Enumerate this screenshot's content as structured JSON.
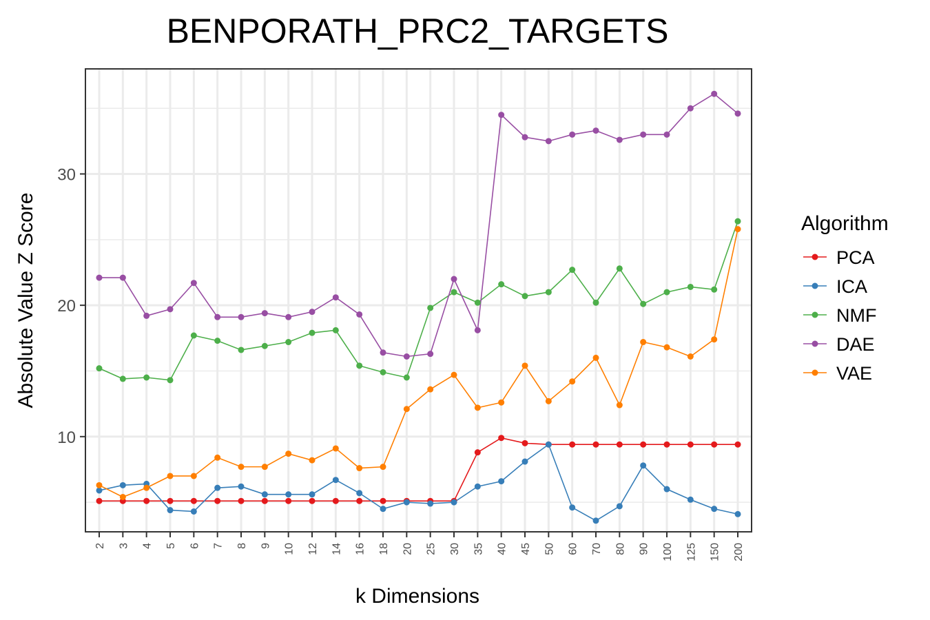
{
  "chart_data": {
    "type": "line",
    "title": "BENPORATH_PRC2_TARGETS",
    "xlabel": "k Dimensions",
    "ylabel": "Absolute Value Z Score",
    "x": [
      "2",
      "3",
      "4",
      "5",
      "6",
      "7",
      "8",
      "9",
      "10",
      "12",
      "14",
      "16",
      "18",
      "20",
      "25",
      "30",
      "35",
      "40",
      "45",
      "50",
      "60",
      "70",
      "80",
      "90",
      "100",
      "125",
      "150",
      "200"
    ],
    "ylim": [
      2.75,
      38.0
    ],
    "yticks": [
      10,
      20,
      30
    ],
    "grid": true,
    "legend": {
      "title": "Algorithm",
      "position": "right"
    },
    "series": [
      {
        "name": "PCA",
        "color": "#e41a1c",
        "values": [
          5.1,
          5.1,
          5.1,
          5.1,
          5.1,
          5.1,
          5.1,
          5.1,
          5.1,
          5.1,
          5.1,
          5.1,
          5.1,
          5.1,
          5.1,
          5.1,
          8.8,
          9.9,
          9.5,
          9.4,
          9.4,
          9.4,
          9.4,
          9.4,
          9.4,
          9.4,
          9.4,
          9.4
        ]
      },
      {
        "name": "ICA",
        "color": "#377eb8",
        "values": [
          5.9,
          6.3,
          6.4,
          4.4,
          4.3,
          6.1,
          6.2,
          5.6,
          5.6,
          5.6,
          6.7,
          5.7,
          4.5,
          5.0,
          4.9,
          5.0,
          6.2,
          6.6,
          8.1,
          9.4,
          4.6,
          3.6,
          4.7,
          7.8,
          6.0,
          5.2,
          4.5,
          4.1
        ]
      },
      {
        "name": "NMF",
        "color": "#4daf4a",
        "values": [
          15.2,
          14.4,
          14.5,
          14.3,
          17.7,
          17.3,
          16.6,
          16.9,
          17.2,
          17.9,
          18.1,
          15.4,
          14.9,
          14.5,
          19.8,
          21.0,
          20.2,
          21.6,
          20.7,
          21.0,
          22.7,
          20.2,
          22.8,
          20.1,
          21.0,
          21.4,
          21.2,
          26.4
        ]
      },
      {
        "name": "DAE",
        "color": "#984ea3",
        "values": [
          22.1,
          22.1,
          19.2,
          19.7,
          21.7,
          19.1,
          19.1,
          19.4,
          19.1,
          19.5,
          20.6,
          19.3,
          16.4,
          16.1,
          16.3,
          22.0,
          18.1,
          34.5,
          32.8,
          32.5,
          33.0,
          33.3,
          32.6,
          33.0,
          33.0,
          35.0,
          36.1,
          34.6
        ]
      },
      {
        "name": "VAE",
        "color": "#ff7f00",
        "values": [
          6.3,
          5.4,
          6.1,
          7.0,
          7.0,
          8.4,
          7.7,
          7.7,
          8.7,
          8.2,
          9.1,
          7.6,
          7.7,
          12.1,
          13.6,
          14.7,
          12.2,
          12.6,
          15.4,
          12.7,
          14.2,
          16.0,
          12.4,
          17.2,
          16.8,
          16.1,
          17.4,
          25.8
        ]
      }
    ]
  }
}
